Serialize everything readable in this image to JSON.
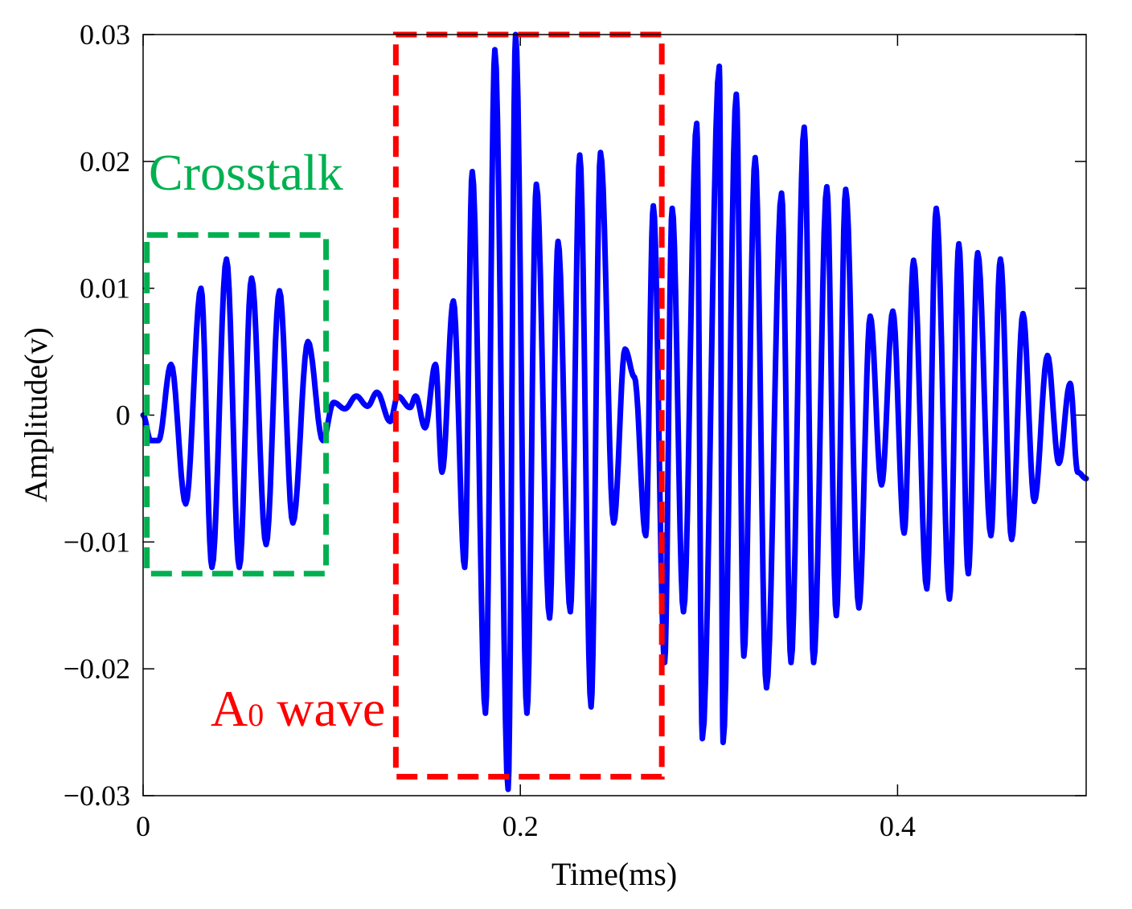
{
  "chart_data": {
    "type": "line",
    "title": "",
    "xlabel": "Time(ms)",
    "ylabel": "Amplitude(v)",
    "xlim": [
      0,
      0.5
    ],
    "ylim": [
      -0.03,
      0.03
    ],
    "xticks": [
      0,
      0.2,
      0.4
    ],
    "xtick_labels": [
      "0",
      "0.2",
      "0.4"
    ],
    "yticks": [
      -0.03,
      -0.02,
      -0.01,
      0,
      0.01,
      0.02,
      0.03
    ],
    "ytick_labels": [
      "−0.03",
      "−0.02",
      "−0.01",
      "0",
      "0.01",
      "0.02",
      "0.03"
    ],
    "grid": false,
    "colors": {
      "signal": "#0000ff",
      "crosstalk": "#00b050",
      "a0": "#ff0000"
    },
    "series": [
      {
        "name": "Amplitude",
        "x": [
          0,
          0.004,
          0.0082,
          0.0148,
          0.0226,
          0.0307,
          0.0365,
          0.0442,
          0.051,
          0.0575,
          0.0652,
          0.0723,
          0.0794,
          0.0874,
          0.0953,
          0.101,
          0.107,
          0.113,
          0.119,
          0.124,
          0.131,
          0.135,
          0.1415,
          0.1445,
          0.1495,
          0.155,
          0.1585,
          0.1645,
          0.1705,
          0.1745,
          0.1815,
          0.1865,
          0.1935,
          0.1975,
          0.2035,
          0.2085,
          0.2155,
          0.22,
          0.2265,
          0.2315,
          0.2375,
          0.2425,
          0.2495,
          0.2555,
          0.2605,
          0.2665,
          0.2705,
          0.2765,
          0.2805,
          0.2865,
          0.2935,
          0.2965,
          0.3055,
          0.3075,
          0.3145,
          0.3185,
          0.3245,
          0.3305,
          0.3385,
          0.3435,
          0.3505,
          0.3555,
          0.3625,
          0.3675,
          0.3725,
          0.3795,
          0.3855,
          0.3915,
          0.3975,
          0.4035,
          0.4085,
          0.4155,
          0.4205,
          0.4275,
          0.4325,
          0.4375,
          0.4425,
          0.4495,
          0.4545,
          0.4605,
          0.4665,
          0.4725,
          0.4795,
          0.4855,
          0.4915,
          0.4955,
          0.5
        ],
        "y": [
          0,
          -0.002,
          -0.002,
          0.004,
          -0.007,
          0.01,
          -0.012,
          0.0123,
          -0.012,
          0.0108,
          -0.0102,
          0.0098,
          -0.0085,
          0.0058,
          -0.002,
          0.001,
          0.0005,
          0.0015,
          0.0007,
          0.0018,
          -0.0005,
          0.0015,
          0.0006,
          0.0015,
          -0.001,
          0.004,
          -0.0045,
          0.009,
          -0.012,
          0.0192,
          -0.0235,
          0.0288,
          -0.0295,
          0.03,
          -0.0235,
          0.0182,
          -0.016,
          0.0137,
          -0.0155,
          0.0205,
          -0.023,
          0.0207,
          -0.0085,
          0.0052,
          0.003,
          -0.0095,
          0.0165,
          -0.0195,
          0.0163,
          -0.0155,
          0.023,
          -0.0255,
          0.0275,
          -0.0258,
          0.0253,
          -0.019,
          0.0203,
          -0.0215,
          0.0175,
          -0.0195,
          0.0227,
          -0.0195,
          0.018,
          -0.0158,
          0.0178,
          -0.0152,
          0.0078,
          -0.0055,
          0.0082,
          -0.0093,
          0.0122,
          -0.0137,
          0.0163,
          -0.0145,
          0.0135,
          -0.0125,
          0.0128,
          -0.0095,
          0.0123,
          -0.0098,
          0.008,
          -0.0068,
          0.0047,
          -0.0038,
          0.0025,
          -0.0045,
          -0.005
        ]
      }
    ],
    "annotations": [
      {
        "type": "dashed-box",
        "label": "Crosstalk",
        "color": "#00b050",
        "x_range": [
          0.002,
          0.097
        ],
        "y_range": [
          -0.0125,
          0.0142
        ]
      },
      {
        "type": "dashed-box",
        "label": "A0 wave",
        "label_main": "A",
        "label_sub": "0",
        "label_rest": " wave",
        "color": "#ff0000",
        "x_range": [
          0.134,
          0.275
        ],
        "y_range": [
          -0.0285,
          0.03
        ]
      }
    ]
  }
}
